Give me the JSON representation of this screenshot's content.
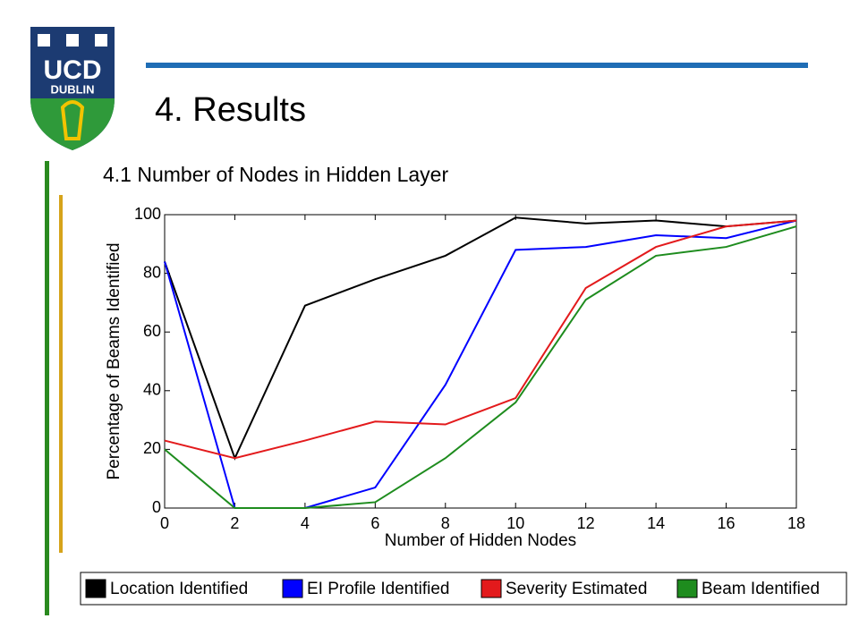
{
  "slide": {
    "logo_top": "UCD",
    "logo_bottom": "DUBLIN",
    "title": "4. Results",
    "subtitle": "4.1 Number of Nodes in Hidden Layer"
  },
  "chart_data": {
    "type": "line",
    "xlabel": "Number of Hidden Nodes",
    "ylabel": "Percentage of Beams Identified",
    "x": [
      0,
      2,
      4,
      6,
      8,
      10,
      12,
      14,
      16,
      18
    ],
    "series": [
      {
        "name": "Location Identified",
        "color": "#000000",
        "values": [
          84,
          17,
          69,
          78,
          86,
          99,
          97,
          98,
          96,
          98
        ]
      },
      {
        "name": "EI Profile Identified",
        "color": "#0000ff",
        "values": [
          84,
          0,
          0,
          7,
          42,
          88,
          89,
          93,
          92,
          98
        ]
      },
      {
        "name": "Severity Estimated",
        "color": "#e31a1c",
        "values": [
          23,
          17,
          23,
          29.5,
          28.5,
          37.5,
          75,
          89,
          96,
          98
        ]
      },
      {
        "name": "Beam Identified",
        "color": "#1e8c1e",
        "values": [
          20,
          0,
          0,
          2,
          17,
          36,
          71,
          86,
          89,
          96
        ]
      }
    ],
    "xlim": [
      0,
      18
    ],
    "xticks": [
      0,
      2,
      4,
      6,
      8,
      10,
      12,
      14,
      16,
      18
    ],
    "ylim": [
      0,
      100
    ],
    "yticks": [
      0,
      20,
      40,
      60,
      80,
      100
    ],
    "grid": false,
    "legend": "bottom"
  }
}
